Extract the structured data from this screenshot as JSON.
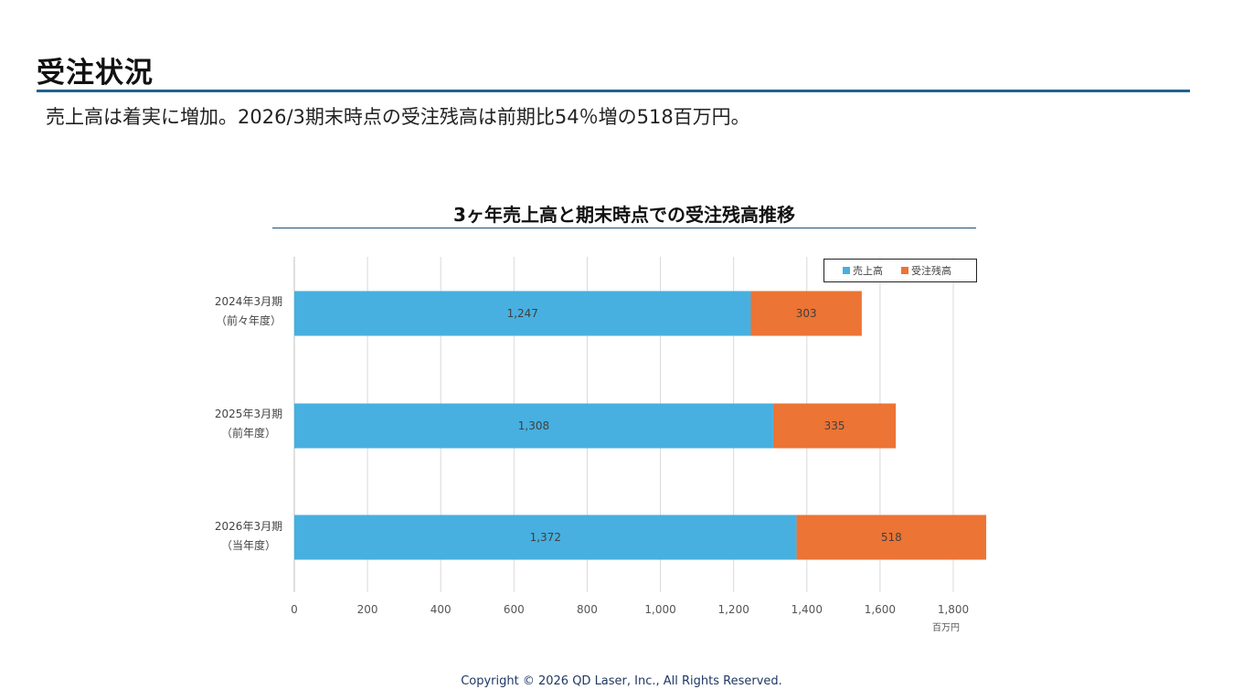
{
  "header": {
    "title": "受注状況",
    "subtitle": "売上高は着実に増加。2026/3期末時点の受注残高は前期比54％増の518百万円。"
  },
  "footer": {
    "copyright": "Copyright © 2026 QD Laser, Inc., All Rights Reserved."
  },
  "colors": {
    "sales": "#47b0e0",
    "backlog": "#ec7434",
    "accent": "#1f6290"
  },
  "chart_data": {
    "type": "bar",
    "orientation": "horizontal",
    "stacked": true,
    "title": "3ヶ年売上高と期末時点での受注残高推移",
    "unit": "百万円",
    "categories": [
      {
        "line1": "2024年3月期",
        "line2": "（前々年度）"
      },
      {
        "line1": "2025年3月期",
        "line2": "（前年度）"
      },
      {
        "line1": "2026年3月期",
        "line2": "（当年度）"
      }
    ],
    "series": [
      {
        "name": "売上高",
        "values": [
          1247,
          1308,
          1372
        ],
        "labels": [
          "1,247",
          "1,308",
          "1,372"
        ]
      },
      {
        "name": "受注残高",
        "values": [
          303,
          335,
          518
        ],
        "labels": [
          "303",
          "335",
          "518"
        ]
      }
    ],
    "xlim": [
      0,
      1800
    ],
    "ticks": [
      0,
      200,
      400,
      600,
      800,
      1000,
      1200,
      1400,
      1600,
      1800
    ],
    "tick_labels": [
      "0",
      "200",
      "400",
      "600",
      "800",
      "1,000",
      "1,200",
      "1,400",
      "1,600",
      "1,800"
    ],
    "grid": true,
    "legend_position": "top-right"
  }
}
